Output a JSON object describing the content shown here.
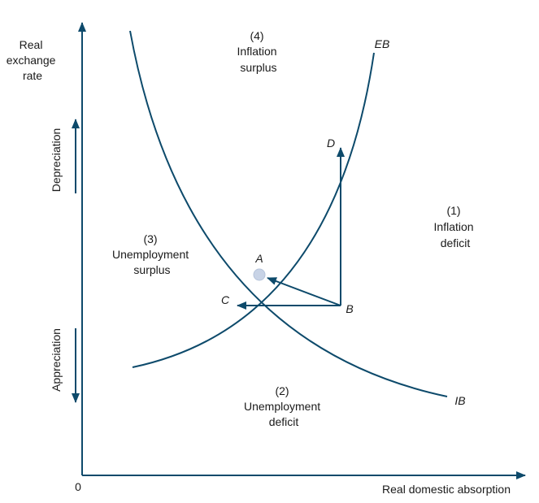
{
  "axes": {
    "y_label": [
      "Real",
      "exchange",
      "rate"
    ],
    "x_label": "Real domestic absorption",
    "origin": "0",
    "depreciation": "Depreciation",
    "appreciation": "Appreciation"
  },
  "curves": {
    "eb": "EB",
    "ib": "IB"
  },
  "points": {
    "a": "A",
    "b": "B",
    "c": "C",
    "d": "D"
  },
  "regions": {
    "r1": [
      "(1)",
      "Inflation",
      "deficit"
    ],
    "r2": [
      "(2)",
      "Unemployment",
      "deficit"
    ],
    "r3": [
      "(3)",
      "Unemployment",
      "surplus"
    ],
    "r4": [
      "(4)",
      "Inflation",
      "surplus"
    ]
  },
  "colors": {
    "curve": "#0d4a6b",
    "point_a": "#c8d3e6",
    "text": "#1a1a1a"
  }
}
